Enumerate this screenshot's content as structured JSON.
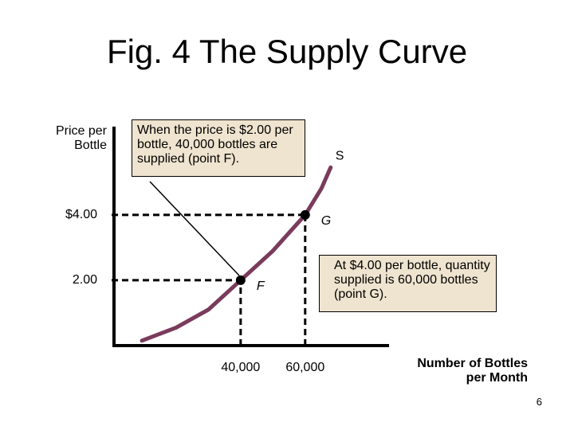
{
  "chart_data": {
    "type": "line",
    "title": "Fig. 4 The Supply Curve",
    "y_label": "Price per Bottle",
    "x_label": "Number of Bottles per Month",
    "xlim": [
      0,
      86000
    ],
    "ylim": [
      0,
      6.7
    ],
    "xticks": [
      {
        "value": 40000,
        "label": "40,000"
      },
      {
        "value": 60000,
        "label": "60,000"
      }
    ],
    "yticks": [
      {
        "value": 2,
        "label": "2.00"
      },
      {
        "value": 4,
        "label": "$4.00"
      }
    ],
    "series": [
      {
        "name": "S",
        "color": "#7a3b5c",
        "x": [
          9400,
          20000,
          30000,
          40000,
          50000,
          60000,
          65000,
          67900
        ],
        "values": [
          0.15,
          0.55,
          1.1,
          2,
          2.9,
          4,
          4.8,
          5.45
        ]
      }
    ],
    "points": [
      {
        "label": "F",
        "x": 40000,
        "y": 2
      },
      {
        "label": "G",
        "x": 60000,
        "y": 4
      }
    ],
    "annotations": [
      "When the price is $2.00 per bottle, 40,000 bottles are supplied (point F).",
      "At $4.00 per bottle, quantity supplied is 60,000 bottles (point G)."
    ],
    "page_number": 6
  }
}
